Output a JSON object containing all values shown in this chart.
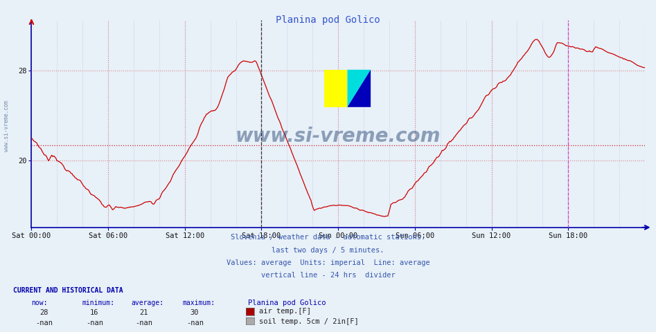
{
  "title": "Planina pod Golico",
  "title_color": "#3355cc",
  "bg_color": "#e8f0f8",
  "plot_bg_color": "#e8f0f8",
  "line_color": "#cc0000",
  "line_width": 1.0,
  "avg_line_color": "#cc0000",
  "avg_line_value": 21.3,
  "divider_color_main": "#666666",
  "divider_color_right": "#cc44cc",
  "ylim_min": 14.0,
  "ylim_max": 32.5,
  "yticks": [
    20,
    28
  ],
  "ytick_labels": [
    "20",
    "28"
  ],
  "xtick_labels": [
    "Sat 00:00",
    "Sat 06:00",
    "Sat 12:00",
    "Sat 18:00",
    "Sun 00:00",
    "Sun 06:00",
    "Sun 12:00",
    "Sun 18:00"
  ],
  "watermark_text": "www.si-vreme.com",
  "watermark_color": "#1a3a6a",
  "watermark_alpha": 0.45,
  "info_lines": [
    "Slovenia / weather data - automatic stations.",
    "last two days / 5 minutes.",
    "Values: average  Units: imperial  Line: average",
    "vertical line - 24 hrs  divider"
  ],
  "info_color": "#3355aa",
  "current_label": "CURRENT AND HISTORICAL DATA",
  "now_val": "28",
  "min_val": "16",
  "avg_val": "21",
  "max_val": "30",
  "station_name": "Planina pod Golico",
  "legend_entries": [
    {
      "color": "#aa0000",
      "label": "air temp.[F]"
    },
    {
      "color": "#888888",
      "label": "soil temp. 5cm / 2in[F]"
    }
  ],
  "grid_color_h": "#dd8888",
  "grid_color_v": "#aaaacc",
  "spine_color": "#0000aa",
  "axis_arrow_color": "#cc0000"
}
